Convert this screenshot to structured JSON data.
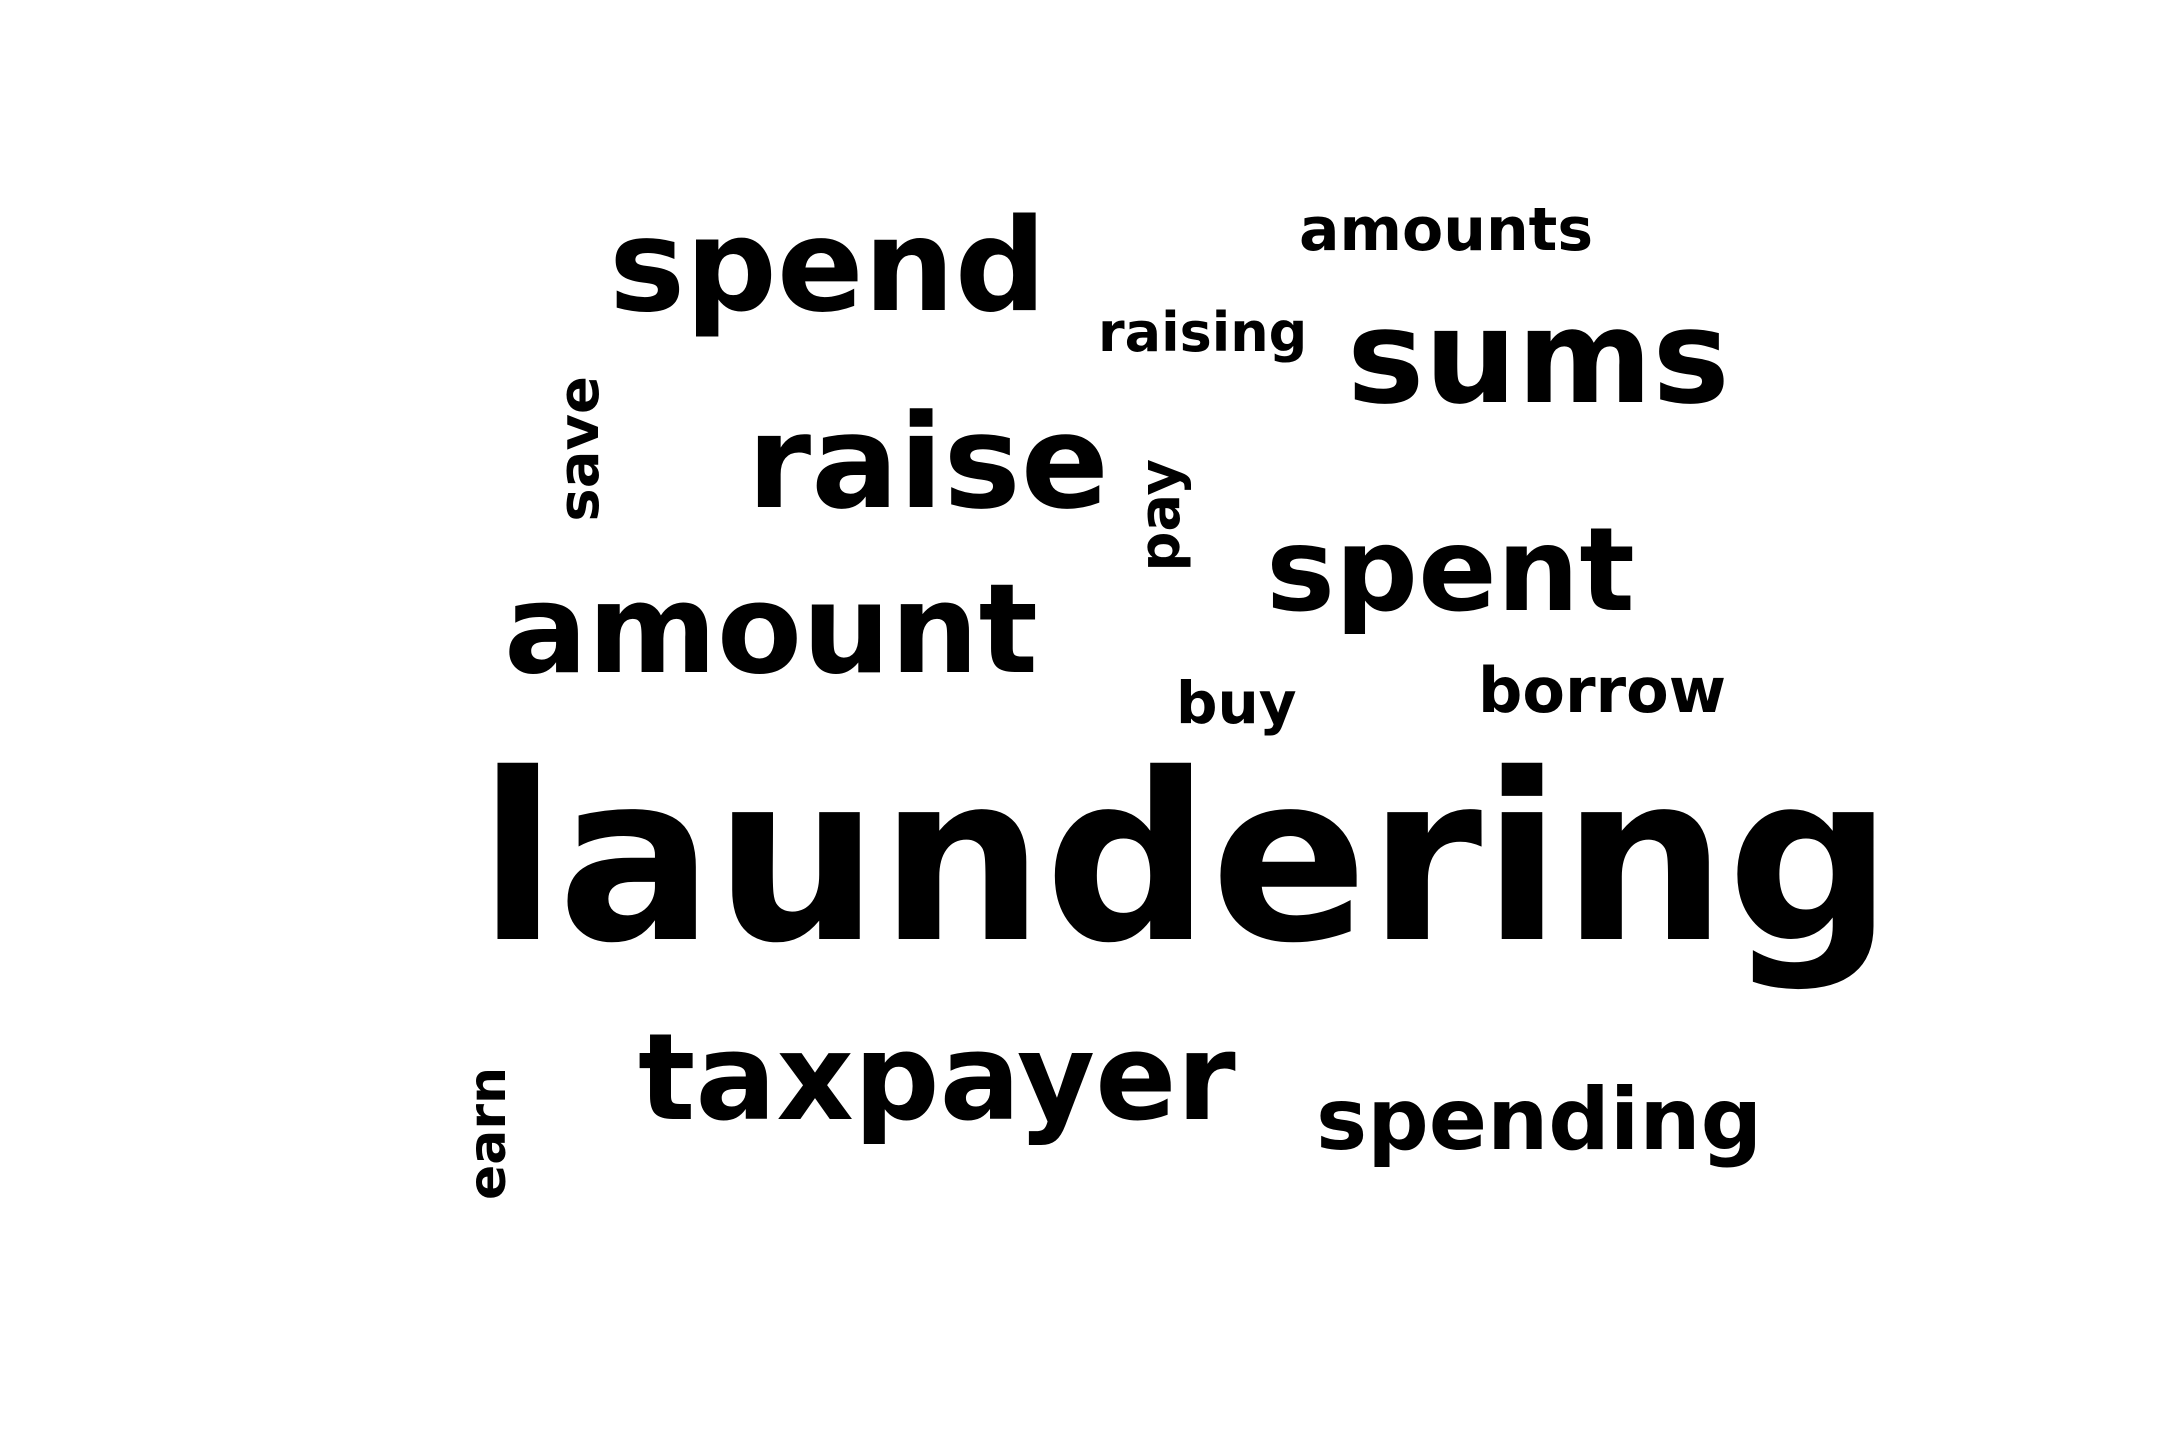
{
  "word_cloud": {
    "words": {
      "laundering": "laundering",
      "spend": "spend",
      "sums": "sums",
      "raise": "raise",
      "spent": "spent",
      "amount": "amount",
      "taxpayer": "taxpayer",
      "spending": "spending",
      "amounts": "amounts",
      "raising": "raising",
      "borrow": "borrow",
      "buy": "buy",
      "save": "save",
      "pay": "pay",
      "earn": "earn"
    },
    "text_color": "#000000",
    "background_color": "#ffffff"
  }
}
